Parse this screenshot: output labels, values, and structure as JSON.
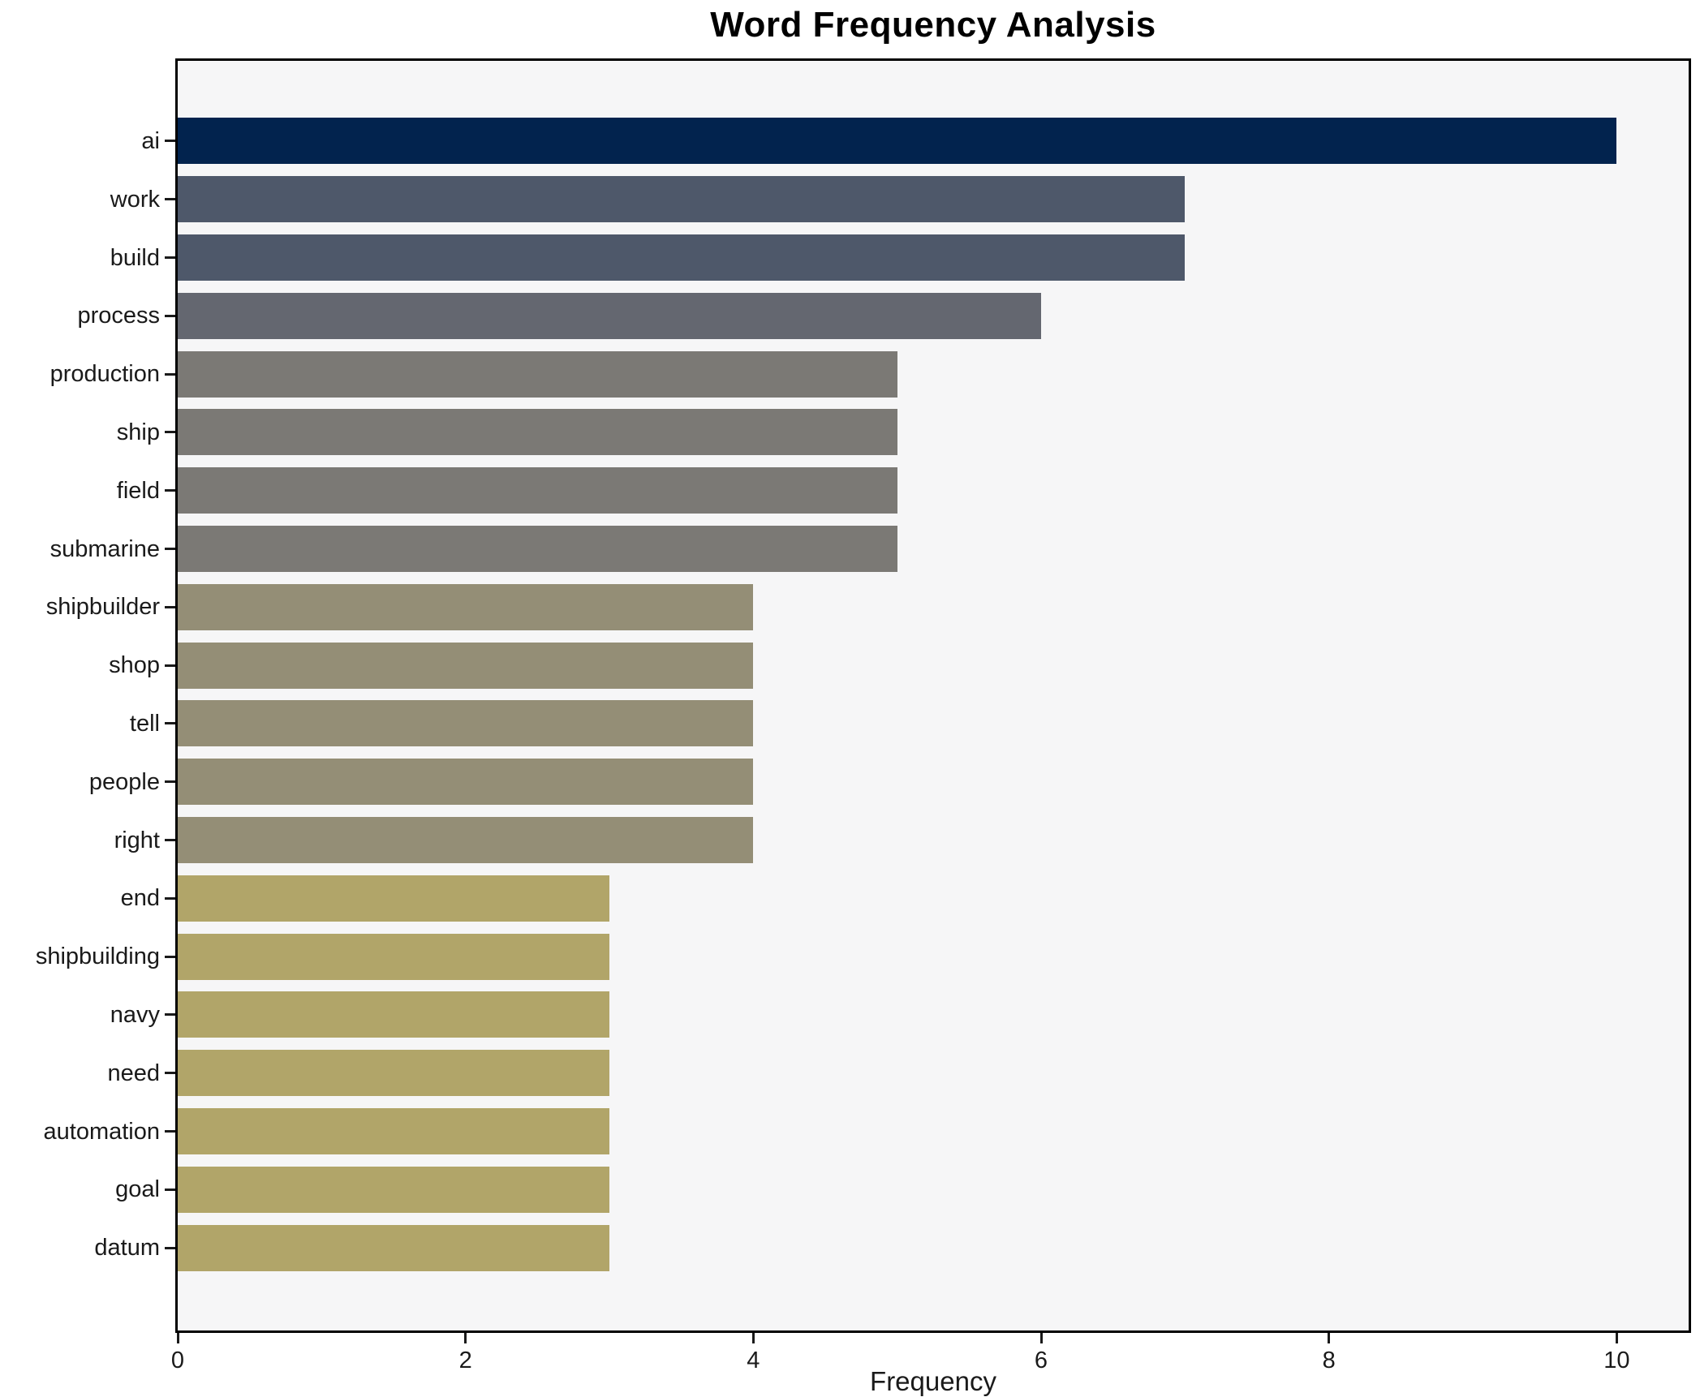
{
  "chart_data": {
    "type": "bar",
    "orientation": "horizontal",
    "title": "Word Frequency Analysis",
    "xlabel": "Frequency",
    "ylabel": "",
    "categories": [
      "ai",
      "work",
      "build",
      "process",
      "production",
      "ship",
      "field",
      "submarine",
      "shipbuilder",
      "shop",
      "tell",
      "people",
      "right",
      "end",
      "shipbuilding",
      "navy",
      "need",
      "automation",
      "goal",
      "datum"
    ],
    "values": [
      10,
      7,
      7,
      6,
      5,
      5,
      5,
      5,
      4,
      4,
      4,
      4,
      4,
      3,
      3,
      3,
      3,
      3,
      3,
      3
    ],
    "bar_colors": [
      "#02234e",
      "#4e586a",
      "#4e586a",
      "#646770",
      "#7b7975",
      "#7b7975",
      "#7b7975",
      "#7b7975",
      "#948e76",
      "#948e76",
      "#948e76",
      "#948e76",
      "#948e76",
      "#b1a569",
      "#b1a569",
      "#b1a569",
      "#b1a569",
      "#b1a569",
      "#b1a569",
      "#b1a569"
    ],
    "xlim": [
      0,
      10.5
    ],
    "xticks": [
      0,
      2,
      4,
      6,
      8,
      10
    ],
    "grid": false,
    "legend": false,
    "bar_height_ratio": 0.8,
    "plot_background": "#f6f6f7",
    "figure_background": "#ffffff",
    "spine_color": "#000000",
    "text_color": "#1a1a1a"
  }
}
